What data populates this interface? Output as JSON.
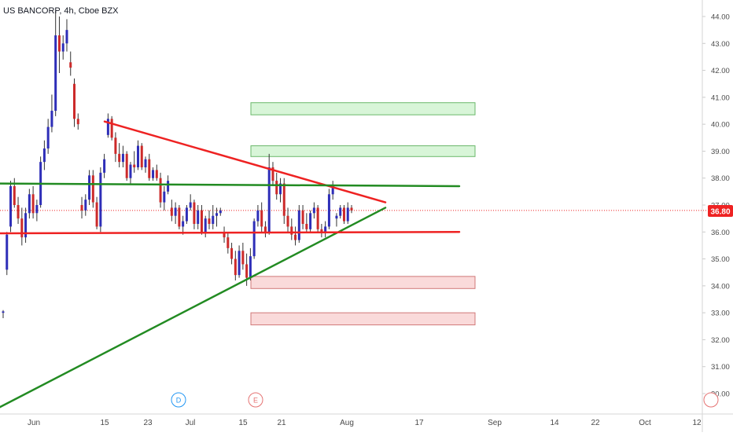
{
  "header": {
    "symbol_title": "US BANCORP, 4h, Cboe BZX"
  },
  "colors": {
    "up_candle": "#2e2eb8",
    "down_candle": "#cc2a2a",
    "wick": "#333333",
    "red_line": "#ee2222",
    "green_line": "#228b22",
    "price_tag": "#ee2222",
    "green_zone_fill": "#d8f5d8",
    "green_zone_border": "#6ab86a",
    "red_zone_fill": "#fadada",
    "red_zone_border": "#d07878",
    "axis_text": "#4a4a4a",
    "event_d": "#2196f3",
    "event_e": "#e57373"
  },
  "chart_data": {
    "type": "candlestick",
    "title": "US BANCORP, 4h, Cboe BZX",
    "ylim": [
      29.3,
      44.5
    ],
    "y_ticks": [
      "30.00",
      "31.00",
      "32.00",
      "33.00",
      "34.00",
      "35.00",
      "36.00",
      "37.00",
      "38.00",
      "39.00",
      "40.00",
      "41.00",
      "42.00",
      "43.00",
      "44.00"
    ],
    "x_ticks": [
      "Jun",
      "15",
      "23",
      "Jul",
      "15",
      "21",
      "Aug",
      "17",
      "Sep",
      "14",
      "22",
      "Oct",
      "12"
    ],
    "last_price": "36.80",
    "candles": [
      [
        33.0,
        33.1,
        32.8,
        33.05
      ],
      [
        34.6,
        36.0,
        34.4,
        35.9
      ],
      [
        36.2,
        37.9,
        36.0,
        37.7
      ],
      [
        37.7,
        38.0,
        36.9,
        37.0
      ],
      [
        37.0,
        37.3,
        36.3,
        36.5
      ],
      [
        36.5,
        36.9,
        35.5,
        35.8
      ],
      [
        35.8,
        36.9,
        35.6,
        36.7
      ],
      [
        36.7,
        37.6,
        36.5,
        37.4
      ],
      [
        37.4,
        37.7,
        36.5,
        36.7
      ],
      [
        36.7,
        37.2,
        36.4,
        37.0
      ],
      [
        37.0,
        38.8,
        36.9,
        38.6
      ],
      [
        38.6,
        39.4,
        38.3,
        39.1
      ],
      [
        39.1,
        40.2,
        38.9,
        39.9
      ],
      [
        39.9,
        41.1,
        39.7,
        40.5
      ],
      [
        40.5,
        44.2,
        40.3,
        43.3
      ],
      [
        43.3,
        44.0,
        41.9,
        42.7
      ],
      [
        42.7,
        43.3,
        42.4,
        43.0
      ],
      [
        43.0,
        43.9,
        42.7,
        43.5
      ],
      [
        42.3,
        42.7,
        41.8,
        42.1
      ],
      [
        41.5,
        41.7,
        39.9,
        40.2
      ],
      [
        40.2,
        40.4,
        39.8,
        40.0
      ],
      [
        37.0,
        37.3,
        36.5,
        36.8
      ],
      [
        36.8,
        37.4,
        36.6,
        37.2
      ],
      [
        37.2,
        38.3,
        37.0,
        38.1
      ],
      [
        38.1,
        38.3,
        36.9,
        37.1
      ],
      [
        37.1,
        37.3,
        36.1,
        36.2
      ],
      [
        36.2,
        38.4,
        36.0,
        38.2
      ],
      [
        38.2,
        38.9,
        38.0,
        38.7
      ],
      [
        39.6,
        40.4,
        39.5,
        40.2
      ],
      [
        40.2,
        40.3,
        39.4,
        39.5
      ],
      [
        39.5,
        39.7,
        38.6,
        38.9
      ],
      [
        38.9,
        39.3,
        38.4,
        38.6
      ],
      [
        38.6,
        39.2,
        38.4,
        38.9
      ],
      [
        38.9,
        39.0,
        37.9,
        38.0
      ],
      [
        38.0,
        38.6,
        37.8,
        38.5
      ],
      [
        38.5,
        39.0,
        38.2,
        38.4
      ],
      [
        38.4,
        39.4,
        38.3,
        39.2
      ],
      [
        39.2,
        39.3,
        38.3,
        38.4
      ],
      [
        38.4,
        38.8,
        38.2,
        38.7
      ],
      [
        38.7,
        38.9,
        37.9,
        38.0
      ],
      [
        38.0,
        38.4,
        37.9,
        38.3
      ],
      [
        38.3,
        38.5,
        37.9,
        38.0
      ],
      [
        38.0,
        38.2,
        36.9,
        37.1
      ],
      [
        37.1,
        37.7,
        36.8,
        37.5
      ],
      [
        37.5,
        38.1,
        37.4,
        37.9
      ],
      [
        36.9,
        37.2,
        36.4,
        36.6
      ],
      [
        36.6,
        37.1,
        36.3,
        36.9
      ],
      [
        36.9,
        37.0,
        36.1,
        36.2
      ],
      [
        36.2,
        36.6,
        35.9,
        36.4
      ],
      [
        36.4,
        37.0,
        36.3,
        36.9
      ],
      [
        36.9,
        37.4,
        36.8,
        37.1
      ],
      [
        37.1,
        37.2,
        36.1,
        36.3
      ],
      [
        36.3,
        37.0,
        36.1,
        36.8
      ],
      [
        36.8,
        37.0,
        35.9,
        36.0
      ],
      [
        36.0,
        36.6,
        35.8,
        36.5
      ],
      [
        36.5,
        36.8,
        36.1,
        36.3
      ],
      [
        36.3,
        37.0,
        36.1,
        36.6
      ],
      [
        36.6,
        36.9,
        36.2,
        36.7
      ],
      [
        36.7,
        36.9,
        36.6,
        36.8
      ],
      [
        36.0,
        36.2,
        35.6,
        35.8
      ],
      [
        35.8,
        36.0,
        35.2,
        35.4
      ],
      [
        35.4,
        35.6,
        34.8,
        35.0
      ],
      [
        35.0,
        35.3,
        34.2,
        34.4
      ],
      [
        34.4,
        35.5,
        34.3,
        35.3
      ],
      [
        35.3,
        35.6,
        34.6,
        34.8
      ],
      [
        34.8,
        35.2,
        34.0,
        34.3
      ],
      [
        34.3,
        35.4,
        34.2,
        35.1
      ],
      [
        35.1,
        36.5,
        35.0,
        36.4
      ],
      [
        36.4,
        37.0,
        36.2,
        36.8
      ],
      [
        36.8,
        37.1,
        36.0,
        36.2
      ],
      [
        36.2,
        36.4,
        35.8,
        36.0
      ],
      [
        36.0,
        38.9,
        35.9,
        38.4
      ],
      [
        38.4,
        38.6,
        37.7,
        37.9
      ],
      [
        37.9,
        38.2,
        37.2,
        37.4
      ],
      [
        37.4,
        38.0,
        37.1,
        37.8
      ],
      [
        37.8,
        38.0,
        36.3,
        36.6
      ],
      [
        36.6,
        36.9,
        36.0,
        36.2
      ],
      [
        36.2,
        36.5,
        35.7,
        35.9
      ],
      [
        35.9,
        36.2,
        35.5,
        35.7
      ],
      [
        35.7,
        37.0,
        35.6,
        36.8
      ],
      [
        36.8,
        37.0,
        36.1,
        36.3
      ],
      [
        36.3,
        36.7,
        36.0,
        36.1
      ],
      [
        36.1,
        36.8,
        36.0,
        36.7
      ],
      [
        36.7,
        37.1,
        36.5,
        36.9
      ],
      [
        36.9,
        37.0,
        36.0,
        36.1
      ],
      [
        36.1,
        36.3,
        35.8,
        36.0
      ],
      [
        36.0,
        36.4,
        35.8,
        36.2
      ],
      [
        36.2,
        37.6,
        36.1,
        37.4
      ],
      [
        37.4,
        37.9,
        37.2,
        37.7
      ],
      [
        36.5,
        36.7,
        36.2,
        36.6
      ],
      [
        36.6,
        37.0,
        36.5,
        36.9
      ],
      [
        36.9,
        37.0,
        36.3,
        36.4
      ],
      [
        36.4,
        37.1,
        36.3,
        36.9
      ],
      [
        36.9,
        37.0,
        36.7,
        36.8
      ]
    ],
    "trendlines": [
      {
        "color": "red",
        "points": [
          [
            "Jun 15",
            40.1
          ],
          [
            "Aug 8",
            37.1
          ]
        ]
      },
      {
        "color": "green",
        "points": [
          [
            "May 23",
            29.5
          ],
          [
            "Aug 8",
            36.9
          ]
        ]
      },
      {
        "color": "green",
        "points": [
          [
            "Jul 29",
            37.8
          ],
          [
            "Aug 30",
            37.7
          ]
        ]
      },
      {
        "color": "red",
        "points": [
          [
            "Jul 29",
            35.95
          ],
          [
            "Aug 30",
            36.0
          ]
        ]
      }
    ],
    "zones": [
      {
        "kind": "green",
        "from": 40.35,
        "to": 40.8
      },
      {
        "kind": "green",
        "from": 38.8,
        "to": 39.2
      },
      {
        "kind": "red",
        "from": 33.9,
        "to": 34.35
      },
      {
        "kind": "red",
        "from": 32.55,
        "to": 33.0
      }
    ],
    "events": [
      "D",
      "E"
    ]
  }
}
